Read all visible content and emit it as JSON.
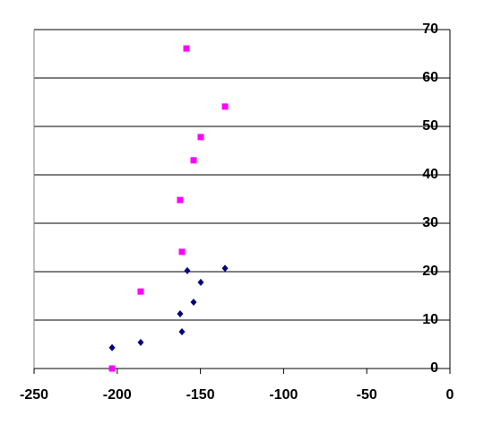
{
  "chart_data": {
    "type": "scatter",
    "series": [
      {
        "color": "#000080",
        "marker": "diamond",
        "x": [
          -135.2,
          -157.9,
          -149.8,
          -154.1,
          -162.2,
          -185.9,
          -161.1,
          -203.1
        ],
        "values": [
          20.7,
          20.2,
          17.8,
          13.7,
          11.3,
          5.4,
          7.6,
          4.3
        ]
      },
      {
        "color": "#ff00ff",
        "marker": "square",
        "x": [
          -158.4,
          -135.2,
          -149.8,
          -154.1,
          -162.2,
          -161.1,
          -185.9,
          -203.1
        ],
        "values": [
          66.1,
          54.1,
          47.8,
          43.0,
          34.8,
          24.1,
          15.9,
          0
        ]
      }
    ],
    "xlim": [
      -250,
      0
    ],
    "xticks": [
      -250,
      -200,
      -150,
      -100,
      -50,
      0
    ],
    "ylim": [
      0,
      70
    ],
    "yticks": [
      0,
      10,
      20,
      30,
      40,
      50,
      60,
      70
    ],
    "grid": true,
    "y_axis_side": "right"
  }
}
